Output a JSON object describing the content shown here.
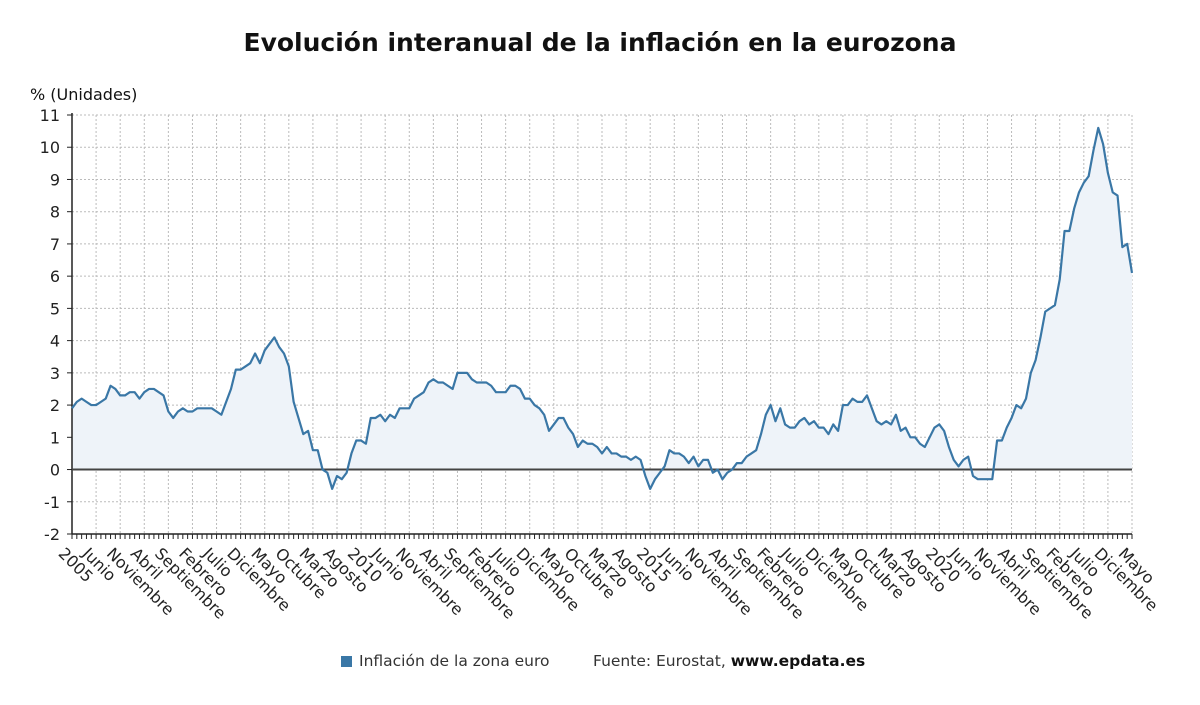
{
  "title": "Evolución interanual de la inflación en la eurozona",
  "source": {
    "label": "Fuente: Eurostat, ",
    "site": "www.epdata.es"
  },
  "colors": {
    "line": "#3a77a6",
    "area": "#eef3f9",
    "grid": "#bbbbbb",
    "axis": "#222222",
    "zero": "#444444"
  },
  "chart_data": {
    "type": "area",
    "ylabel": "% (Unidades)",
    "ylim": [
      -2,
      11
    ],
    "yticks": [
      -2,
      -1,
      0,
      1,
      2,
      3,
      4,
      5,
      6,
      7,
      8,
      9,
      10,
      11
    ],
    "grid": true,
    "legend_position": "bottom",
    "x_start": "2005-01",
    "x_end": "2023-05",
    "xticks": [
      {
        "month": "2005-01",
        "label": "2005"
      },
      {
        "month": "2005-06",
        "label": "Junio"
      },
      {
        "month": "2005-11",
        "label": "Noviembre"
      },
      {
        "month": "2006-04",
        "label": "Abril"
      },
      {
        "month": "2006-09",
        "label": "Septiembre"
      },
      {
        "month": "2007-02",
        "label": "Febrero"
      },
      {
        "month": "2007-07",
        "label": "Julio"
      },
      {
        "month": "2007-12",
        "label": "Diciembre"
      },
      {
        "month": "2008-05",
        "label": "Mayo"
      },
      {
        "month": "2008-10",
        "label": "Octubre"
      },
      {
        "month": "2009-03",
        "label": "Marzo"
      },
      {
        "month": "2009-08",
        "label": "Agosto"
      },
      {
        "month": "2010-01",
        "label": "2010"
      },
      {
        "month": "2010-06",
        "label": "Junio"
      },
      {
        "month": "2010-11",
        "label": "Noviembre"
      },
      {
        "month": "2011-04",
        "label": "Abril"
      },
      {
        "month": "2011-09",
        "label": "Septiembre"
      },
      {
        "month": "2012-02",
        "label": "Febrero"
      },
      {
        "month": "2012-07",
        "label": "Julio"
      },
      {
        "month": "2012-12",
        "label": "Diciembre"
      },
      {
        "month": "2013-05",
        "label": "Mayo"
      },
      {
        "month": "2013-10",
        "label": "Octubre"
      },
      {
        "month": "2014-03",
        "label": "Marzo"
      },
      {
        "month": "2014-08",
        "label": "Agosto"
      },
      {
        "month": "2015-01",
        "label": "2015"
      },
      {
        "month": "2015-06",
        "label": "Junio"
      },
      {
        "month": "2015-11",
        "label": "Noviembre"
      },
      {
        "month": "2016-04",
        "label": "Abril"
      },
      {
        "month": "2016-09",
        "label": "Septiembre"
      },
      {
        "month": "2017-02",
        "label": "Febrero"
      },
      {
        "month": "2017-07",
        "label": "Julio"
      },
      {
        "month": "2017-12",
        "label": "Diciembre"
      },
      {
        "month": "2018-05",
        "label": "Mayo"
      },
      {
        "month": "2018-10",
        "label": "Octubre"
      },
      {
        "month": "2019-03",
        "label": "Marzo"
      },
      {
        "month": "2019-08",
        "label": "Agosto"
      },
      {
        "month": "2020-01",
        "label": "2020"
      },
      {
        "month": "2020-06",
        "label": "Junio"
      },
      {
        "month": "2020-11",
        "label": "Noviembre"
      },
      {
        "month": "2021-04",
        "label": "Abril"
      },
      {
        "month": "2021-09",
        "label": "Septiembre"
      },
      {
        "month": "2022-02",
        "label": "Febrero"
      },
      {
        "month": "2022-07",
        "label": "Julio"
      },
      {
        "month": "2022-12",
        "label": "Diciembre"
      },
      {
        "month": "2023-05",
        "label": "Mayo"
      }
    ],
    "series": [
      {
        "name": "Inflación de la zona euro",
        "values": [
          1.9,
          2.1,
          2.2,
          2.1,
          2.0,
          2.0,
          2.1,
          2.2,
          2.6,
          2.5,
          2.3,
          2.3,
          2.4,
          2.4,
          2.2,
          2.4,
          2.5,
          2.5,
          2.4,
          2.3,
          1.8,
          1.6,
          1.8,
          1.9,
          1.8,
          1.8,
          1.9,
          1.9,
          1.9,
          1.9,
          1.8,
          1.7,
          2.1,
          2.5,
          3.1,
          3.1,
          3.2,
          3.3,
          3.6,
          3.3,
          3.7,
          3.9,
          4.1,
          3.8,
          3.6,
          3.2,
          2.1,
          1.6,
          1.1,
          1.2,
          0.6,
          0.6,
          0.0,
          -0.1,
          -0.6,
          -0.2,
          -0.3,
          -0.1,
          0.5,
          0.9,
          0.9,
          0.8,
          1.6,
          1.6,
          1.7,
          1.5,
          1.7,
          1.6,
          1.9,
          1.9,
          1.9,
          2.2,
          2.3,
          2.4,
          2.7,
          2.8,
          2.7,
          2.7,
          2.6,
          2.5,
          3.0,
          3.0,
          3.0,
          2.8,
          2.7,
          2.7,
          2.7,
          2.6,
          2.4,
          2.4,
          2.4,
          2.6,
          2.6,
          2.5,
          2.2,
          2.2,
          2.0,
          1.9,
          1.7,
          1.2,
          1.4,
          1.6,
          1.6,
          1.3,
          1.1,
          0.7,
          0.9,
          0.8,
          0.8,
          0.7,
          0.5,
          0.7,
          0.5,
          0.5,
          0.4,
          0.4,
          0.3,
          0.4,
          0.3,
          -0.2,
          -0.6,
          -0.3,
          -0.1,
          0.1,
          0.6,
          0.5,
          0.5,
          0.4,
          0.2,
          0.4,
          0.1,
          0.3,
          0.3,
          -0.1,
          0.0,
          -0.3,
          -0.1,
          0.0,
          0.2,
          0.2,
          0.4,
          0.5,
          0.6,
          1.1,
          1.7,
          2.0,
          1.5,
          1.9,
          1.4,
          1.3,
          1.3,
          1.5,
          1.6,
          1.4,
          1.5,
          1.3,
          1.3,
          1.1,
          1.4,
          1.2,
          2.0,
          2.0,
          2.2,
          2.1,
          2.1,
          2.3,
          1.9,
          1.5,
          1.4,
          1.5,
          1.4,
          1.7,
          1.2,
          1.3,
          1.0,
          1.0,
          0.8,
          0.7,
          1.0,
          1.3,
          1.4,
          1.2,
          0.7,
          0.3,
          0.1,
          0.3,
          0.4,
          -0.2,
          -0.3,
          -0.3,
          -0.3,
          -0.3,
          0.9,
          0.9,
          1.3,
          1.6,
          2.0,
          1.9,
          2.2,
          3.0,
          3.4,
          4.1,
          4.9,
          5.0,
          5.1,
          5.9,
          7.4,
          7.4,
          8.1,
          8.6,
          8.9,
          9.1,
          9.9,
          10.6,
          10.1,
          9.2,
          8.6,
          8.5,
          6.9,
          7.0,
          6.1
        ]
      }
    ]
  }
}
